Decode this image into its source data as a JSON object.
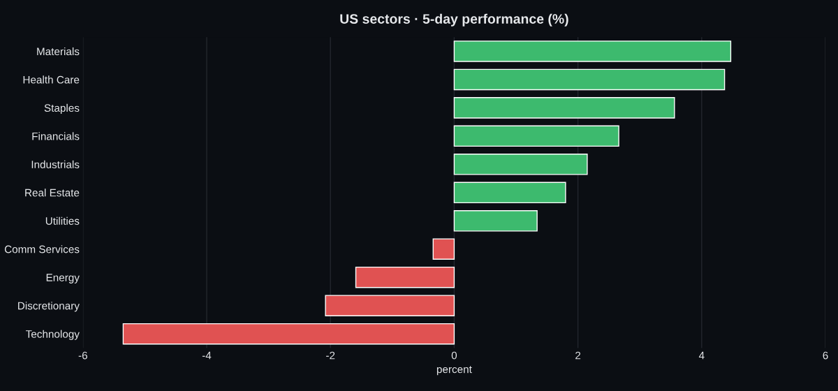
{
  "chart_data": {
    "type": "bar",
    "orientation": "horizontal",
    "title": "US sectors · 5-day performance (%)",
    "xlabel": "percent",
    "categories": [
      "Materials",
      "Health Care",
      "Staples",
      "Financials",
      "Industrials",
      "Real Estate",
      "Utilities",
      "Comm Services",
      "Energy",
      "Discretionary",
      "Technology"
    ],
    "values": [
      4.47,
      4.37,
      3.56,
      2.66,
      2.15,
      1.8,
      1.34,
      -0.34,
      -1.59,
      -2.08,
      -5.35
    ],
    "colors": [
      "#3dba6e",
      "#3dba6e",
      "#3dba6e",
      "#3dba6e",
      "#3dba6e",
      "#3dba6e",
      "#3dba6e",
      "#e05252",
      "#e05252",
      "#e05252",
      "#e05252"
    ],
    "xlim": [
      -6,
      6
    ],
    "xticks": [
      -6,
      -4,
      -2,
      0,
      2,
      4,
      6
    ],
    "grid": "x"
  }
}
